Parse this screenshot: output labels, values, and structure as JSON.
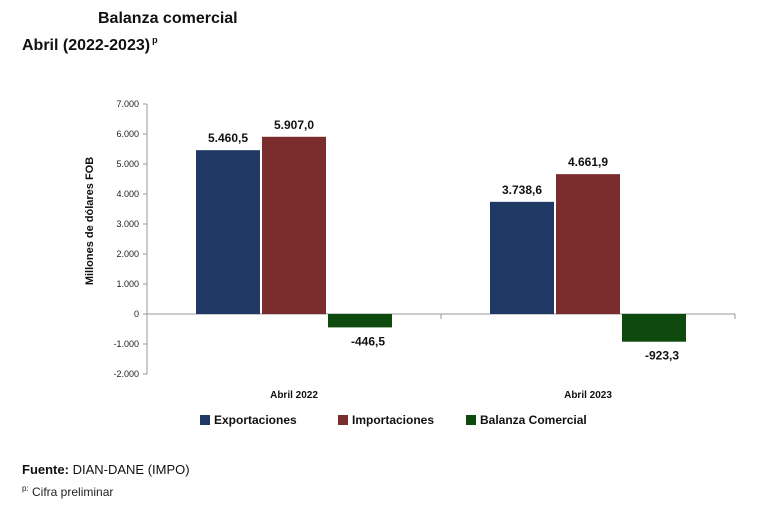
{
  "header": {
    "title": "Balanza comercial",
    "subtitle": "Abril (2022-2023)",
    "subtitle_marker": "p"
  },
  "footer": {
    "source_label": "Fuente:",
    "source_text": "DIAN-DANE (IMPO)",
    "note_marker": "p:",
    "note_text": "Cifra preliminar"
  },
  "chart_data": {
    "type": "bar",
    "title": "Balanza comercial Abril (2022-2023)",
    "xlabel": "",
    "ylabel": "Millones de dólares FOB",
    "ylim": [
      -2000,
      7000
    ],
    "yticks": [
      7000,
      6000,
      5000,
      4000,
      3000,
      2000,
      1000,
      0,
      -1000,
      -2000
    ],
    "ytick_labels": [
      "7.000",
      "6.000",
      "5.000",
      "4.000",
      "3.000",
      "2.000",
      "1.000",
      "0",
      "-1.000",
      "-2.000"
    ],
    "grid": false,
    "legend_position": "bottom",
    "categories": [
      "Abril 2022",
      "Abril 2023"
    ],
    "series": [
      {
        "name": "Exportaciones",
        "color": "#1f3864",
        "values": [
          5460.5,
          3738.6
        ],
        "labels": [
          "5.460,5",
          "3.738,6"
        ]
      },
      {
        "name": "Importaciones",
        "color": "#7b2c2c",
        "values": [
          5907.0,
          4661.9
        ],
        "labels": [
          "5.907,0",
          "4.661,9"
        ]
      },
      {
        "name": "Balanza Comercial",
        "color": "#0e4a0e",
        "values": [
          -446.5,
          -923.3
        ],
        "labels": [
          "-446,5",
          "-923,3"
        ]
      }
    ]
  }
}
